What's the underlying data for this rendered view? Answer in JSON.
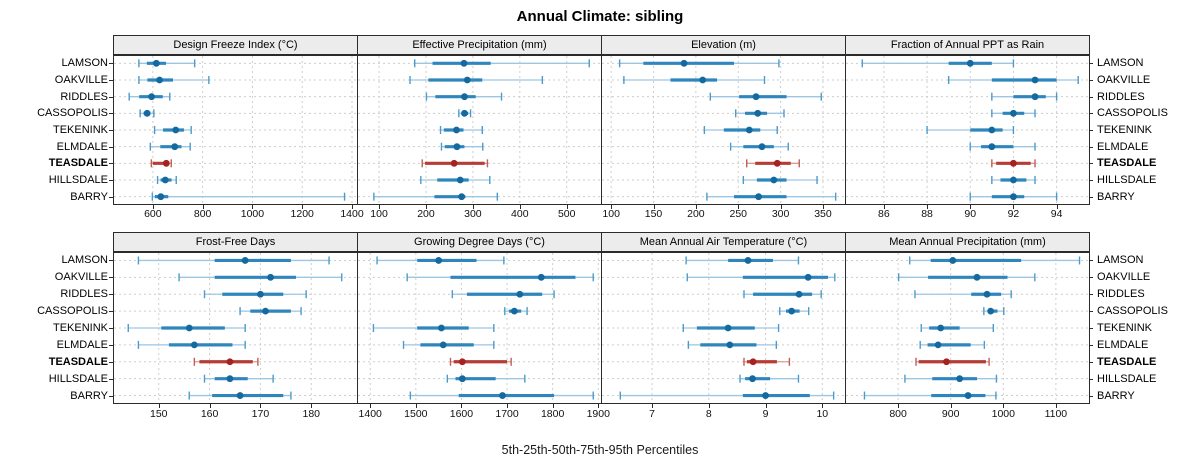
{
  "title": "Annual Climate: sibling",
  "footer": "5th-25th-50th-75th-95th Percentiles",
  "sites": [
    "LAMSON",
    "OAKVILLE",
    "RIDDLES",
    "CASSOPOLIS",
    "TEKENINK",
    "ELMDALE",
    "TEASDALE",
    "HILLSDALE",
    "BARRY"
  ],
  "highlight_site": "TEASDALE",
  "colors": {
    "blue_dot": "#14699F",
    "blue_segment": "#2F86BD",
    "blue_whisker": "#9DC6E2",
    "blue_cap": "#4C9BCB",
    "red_dot": "#A62121",
    "red_segment": "#B63C36",
    "red_whisker": "#D99C97",
    "red_cap": "#C25B54",
    "strip_bg": "#ECECEC",
    "grid": "#CDCDCD",
    "border": "#2B2B2B"
  },
  "chart_data": {
    "type": "dotplot-intervals",
    "note": "Each row shows 5th-25th-50th-75th-95th percentiles: thin whisker p5-p95 with end caps, thick segment p25-p75, dot at median p50",
    "percentiles": [
      "5th",
      "25th",
      "50th",
      "75th",
      "95th"
    ],
    "panels": [
      {
        "title": "Design Freeze Index (°C)",
        "row": 0,
        "col": 0,
        "xlim": [
          440,
          1420
        ],
        "ticks": [
          600,
          800,
          1000,
          1200,
          1400
        ],
        "values": {
          "LAMSON": [
            544,
            576,
            614,
            653,
            768
          ],
          "OAKVILLE": [
            544,
            578,
            627,
            681,
            825
          ],
          "RIDDLES": [
            505,
            545,
            595,
            640,
            668
          ],
          "CASSOPOLIS": [
            549,
            563,
            577,
            590,
            604
          ],
          "TEKENINK": [
            607,
            641,
            692,
            725,
            754
          ],
          "ELMDALE": [
            590,
            630,
            688,
            715,
            750
          ],
          "TEASDALE": [
            594,
            600,
            654,
            666,
            674
          ],
          "HILLSDALE": [
            619,
            631,
            650,
            675,
            694
          ],
          "BARRY": [
            598,
            608,
            632,
            662,
            1370
          ]
        }
      },
      {
        "title": "Effective Precipitation (mm)",
        "row": 0,
        "col": 1,
        "xlim": [
          53,
          573
        ],
        "ticks": [
          100,
          200,
          300,
          400,
          500
        ],
        "values": {
          "LAMSON": [
            176,
            214,
            281,
            338,
            548
          ],
          "OAKVILLE": [
            166,
            205,
            288,
            320,
            448
          ],
          "RIDDLES": [
            201,
            220,
            282,
            306,
            361
          ],
          "CASSOPOLIS": [
            270,
            276,
            282,
            290,
            295
          ],
          "TEKENINK": [
            231,
            238,
            265,
            280,
            320
          ],
          "ELMDALE": [
            233,
            240,
            266,
            282,
            321
          ],
          "TEASDALE": [
            192,
            198,
            260,
            325,
            331
          ],
          "HILLSDALE": [
            189,
            224,
            273,
            291,
            336
          ],
          "BARRY": [
            89,
            218,
            276,
            284,
            352
          ]
        }
      },
      {
        "title": "Elevation (m)",
        "row": 0,
        "col": 2,
        "xlim": [
          88,
          376
        ],
        "ticks": [
          100,
          150,
          200,
          250,
          300,
          350
        ],
        "values": {
          "LAMSON": [
            110,
            138,
            186,
            245,
            298
          ],
          "OAKVILLE": [
            115,
            170,
            208,
            225,
            281
          ],
          "RIDDLES": [
            217,
            251,
            271,
            307,
            348
          ],
          "CASSOPOLIS": [
            247,
            258,
            273,
            284,
            304
          ],
          "TEKENINK": [
            210,
            233,
            263,
            276,
            296
          ],
          "ELMDALE": [
            241,
            256,
            278,
            292,
            309
          ],
          "TEASDALE": [
            260,
            270,
            296,
            312,
            322
          ],
          "HILLSDALE": [
            256,
            272,
            292,
            307,
            343
          ],
          "BARRY": [
            213,
            245,
            274,
            307,
            365
          ]
        }
      },
      {
        "title": "Fraction of Annual PPT as Rain",
        "row": 0,
        "col": 3,
        "xlim": [
          84.2,
          95.5
        ],
        "ticks": [
          86,
          88,
          90,
          92,
          94
        ],
        "values": {
          "LAMSON": [
            85,
            89,
            90,
            91,
            92
          ],
          "OAKVILLE": [
            89,
            91,
            93,
            94,
            95
          ],
          "RIDDLES": [
            91,
            92,
            93,
            93.5,
            94
          ],
          "CASSOPOLIS": [
            91,
            91.5,
            92,
            92.5,
            93
          ],
          "TEKENINK": [
            88,
            90,
            91,
            91.5,
            92
          ],
          "ELMDALE": [
            90,
            90.5,
            91,
            92,
            93
          ],
          "TEASDALE": [
            91,
            91.2,
            92,
            92.8,
            93
          ],
          "HILLSDALE": [
            91,
            91.4,
            92,
            92.6,
            93
          ],
          "BARRY": [
            90,
            91,
            92,
            92.5,
            94
          ]
        }
      },
      {
        "title": "Frost-Free Days",
        "row": 1,
        "col": 0,
        "xlim": [
          141,
          189
        ],
        "ticks": [
          150,
          160,
          170,
          180
        ],
        "values": {
          "LAMSON": [
            146,
            161,
            167,
            176,
            183.5
          ],
          "OAKVILLE": [
            154,
            161,
            172,
            177,
            186
          ],
          "RIDDLES": [
            159,
            162.5,
            170,
            174.5,
            179
          ],
          "CASSOPOLIS": [
            166,
            168,
            171,
            176,
            178
          ],
          "TEKENINK": [
            144,
            150.5,
            156,
            163,
            167
          ],
          "ELMDALE": [
            146,
            152,
            157,
            164.5,
            167
          ],
          "TEASDALE": [
            157,
            158,
            164,
            168.5,
            169.5
          ],
          "HILLSDALE": [
            159,
            161,
            164,
            167.5,
            172.5
          ],
          "BARRY": [
            156,
            160.5,
            166,
            174.5,
            176
          ]
        }
      },
      {
        "title": "Growing Degree Days (°C)",
        "row": 1,
        "col": 1,
        "xlim": [
          1371,
          1906
        ],
        "ticks": [
          1400,
          1500,
          1600,
          1700,
          1800,
          1900
        ],
        "values": {
          "LAMSON": [
            1415,
            1503,
            1550,
            1633,
            1693
          ],
          "OAKVILLE": [
            1481,
            1576,
            1775,
            1850,
            1889
          ],
          "RIDDLES": [
            1580,
            1612,
            1728,
            1777,
            1803
          ],
          "CASSOPOLIS": [
            1695,
            1704,
            1716,
            1731,
            1744
          ],
          "TEKENINK": [
            1407,
            1503,
            1556,
            1616,
            1671
          ],
          "ELMDALE": [
            1473,
            1510,
            1560,
            1627,
            1671
          ],
          "TEASDALE": [
            1576,
            1583,
            1602,
            1700,
            1709
          ],
          "HILLSDALE": [
            1569,
            1587,
            1602,
            1675,
            1739
          ],
          "BARRY": [
            1488,
            1594,
            1690,
            1803,
            1889
          ]
        }
      },
      {
        "title": "Mean Annual Air Temperature (°C)",
        "row": 1,
        "col": 2,
        "xlim": [
          6.1,
          10.4
        ],
        "ticks": [
          7,
          8,
          9,
          10
        ],
        "values": {
          "LAMSON": [
            7.6,
            8.34,
            8.69,
            9.13,
            9.58
          ],
          "OAKVILLE": [
            7.62,
            8.6,
            9.75,
            10.1,
            10.22
          ],
          "RIDDLES": [
            8.62,
            8.78,
            9.59,
            9.82,
            9.98
          ],
          "CASSOPOLIS": [
            9.25,
            9.36,
            9.46,
            9.6,
            9.76
          ],
          "TEKENINK": [
            7.55,
            7.79,
            8.34,
            8.81,
            9.23
          ],
          "ELMDALE": [
            7.64,
            7.85,
            8.37,
            8.84,
            9.19
          ],
          "TEASDALE": [
            8.62,
            8.67,
            8.78,
            9.2,
            9.42
          ],
          "HILLSDALE": [
            8.55,
            8.64,
            8.77,
            9.08,
            9.58
          ],
          "BARRY": [
            6.44,
            8.6,
            9.0,
            9.78,
            10.2
          ]
        }
      },
      {
        "title": "Mean Annual Precipitation (mm)",
        "row": 1,
        "col": 3,
        "xlim": [
          699,
          1163
        ],
        "ticks": [
          800,
          900,
          1000,
          1100
        ],
        "values": {
          "LAMSON": [
            822,
            862,
            904,
            1034,
            1145
          ],
          "OAKVILLE": [
            801,
            857,
            950,
            1008,
            1060
          ],
          "RIDDLES": [
            832,
            939,
            969,
            996,
            1015
          ],
          "CASSOPOLIS": [
            963,
            972,
            976,
            989,
            1001
          ],
          "TEKENINK": [
            844,
            859,
            881,
            917,
            981
          ],
          "ELMDALE": [
            842,
            856,
            876,
            938,
            964
          ],
          "TEASDALE": [
            834,
            839,
            892,
            967,
            973
          ],
          "HILLSDALE": [
            813,
            865,
            917,
            950,
            987
          ],
          "BARRY": [
            736,
            863,
            933,
            966,
            986
          ]
        }
      }
    ]
  }
}
